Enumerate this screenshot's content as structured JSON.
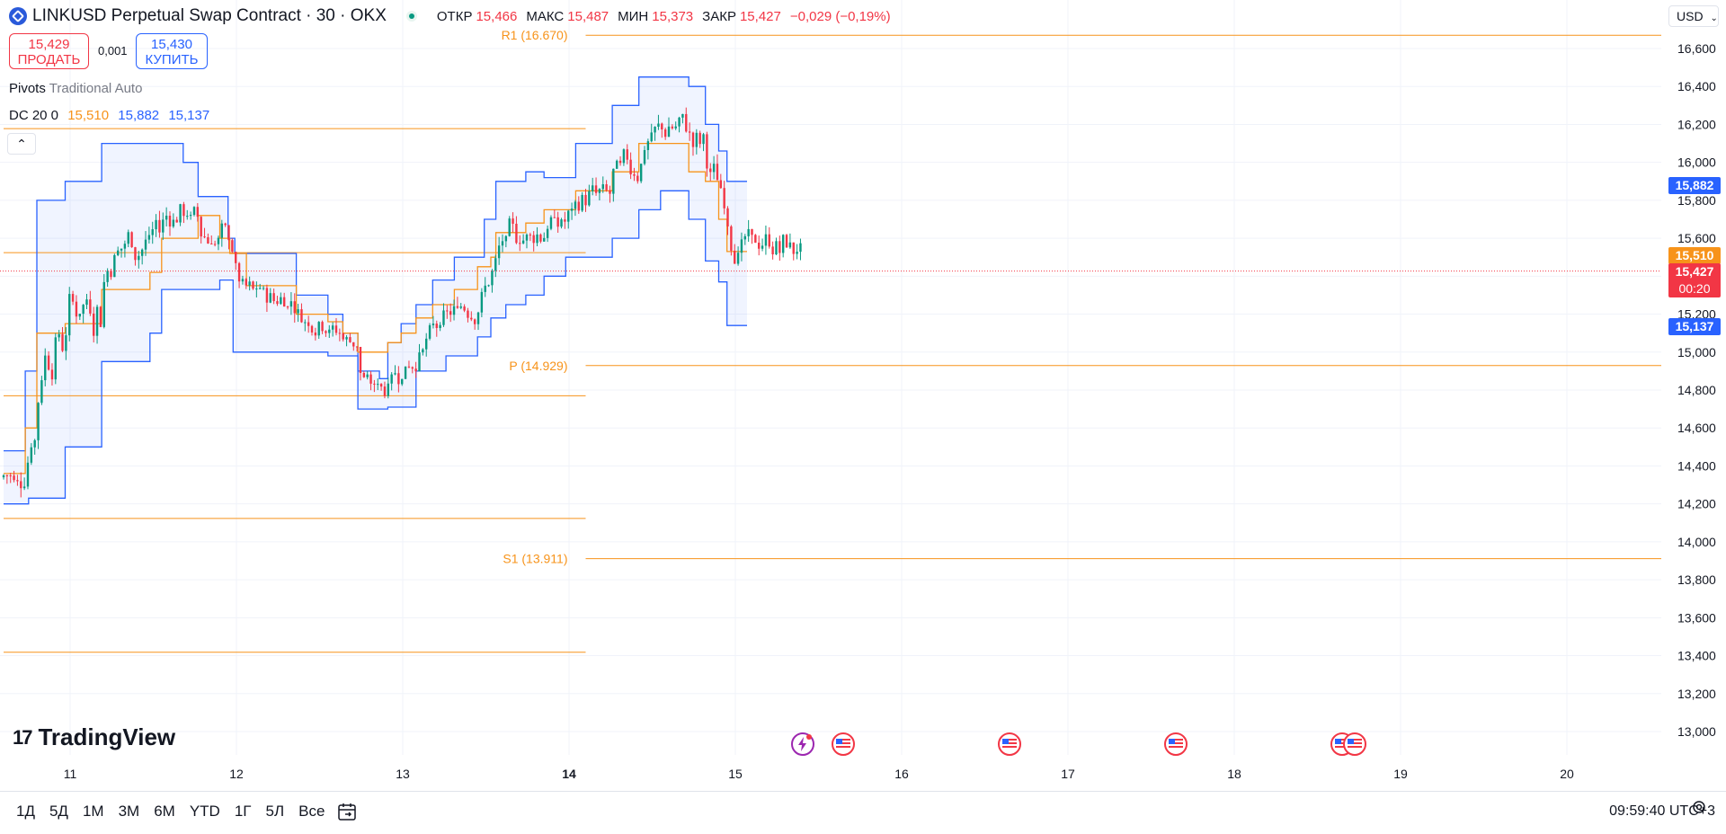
{
  "header": {
    "symbol_title": "LINKUSD Perpetual Swap Contract · 30 · OKX",
    "ohlc": [
      {
        "key": "ОТКР",
        "value": "15,466"
      },
      {
        "key": "МАКС",
        "value": "15,487"
      },
      {
        "key": "МИН",
        "value": "15,373"
      },
      {
        "key": "ЗАКР",
        "value": "15,427"
      }
    ],
    "change": "−0,029 (−0,19%)"
  },
  "trade": {
    "sell_price": "15,429",
    "sell_label": "ПРОДАТЬ",
    "spread": "0,001",
    "buy_price": "15,430",
    "buy_label": "КУПИТЬ"
  },
  "indicators": {
    "pivots_name": "Pivots",
    "pivots_params": "Traditional Auto",
    "dc_name": "DC 20 0",
    "dc_mid": "15,510",
    "dc_upper": "15,882",
    "dc_lower": "15,137"
  },
  "currency": "USD",
  "price_tags": {
    "upper": "15,882",
    "middle": "15,510",
    "last": "15,427",
    "countdown": "00:20",
    "lower": "15,137"
  },
  "colors": {
    "up": "#089981",
    "down": "#f23645",
    "channel": "#2962ff",
    "midline": "#f7931a",
    "pivot": "#f7931a"
  },
  "bottom": {
    "ranges": [
      "1Д",
      "5Д",
      "1М",
      "3М",
      "6М",
      "YTD",
      "1Г",
      "5Л",
      "Все"
    ],
    "clock": "09:59:40 UTC+3"
  },
  "branding": "TradingView",
  "chart_data": {
    "type": "candlestick",
    "y_axis": {
      "ticks": [
        "16,600",
        "16,400",
        "16,200",
        "16,000",
        "15,800",
        "15,600",
        "15,400",
        "15,200",
        "15,000",
        "14,800",
        "14,600",
        "14,400",
        "14,200",
        "14,000",
        "13,800",
        "13,600",
        "13,400",
        "13,200",
        "13,000"
      ],
      "range": [
        12900,
        16720
      ]
    },
    "x_axis": {
      "ticks": [
        "11",
        "12",
        "13",
        "14",
        "15",
        "16",
        "17",
        "18",
        "19",
        "20"
      ],
      "range": [
        10.6,
        20.6
      ]
    },
    "pivot_levels": [
      {
        "label": "R1 (16.670)",
        "value": 16670,
        "from_day": 14.1,
        "to_day": 20.6
      },
      {
        "label": "",
        "value": 16178,
        "from_day": 10.6,
        "to_day": 14.1
      },
      {
        "label": "",
        "value": 15524,
        "from_day": 10.6,
        "to_day": 14.1
      },
      {
        "label": "P (14.929)",
        "value": 14929,
        "from_day": 14.1,
        "to_day": 20.6
      },
      {
        "label": "",
        "value": 14770,
        "from_day": 10.6,
        "to_day": 14.1
      },
      {
        "label": "",
        "value": 14123,
        "from_day": 10.6,
        "to_day": 14.1
      },
      {
        "label": "S1 (13.911)",
        "value": 13911,
        "from_day": 14.1,
        "to_day": 20.6
      },
      {
        "label": "",
        "value": 13418,
        "from_day": 10.6,
        "to_day": 14.1
      }
    ],
    "last_price": 15427,
    "series": [
      {
        "name": "DC upper",
        "points": [
          [
            10.6,
            14.48
          ],
          [
            10.73,
            14.48
          ],
          [
            10.73,
            14.9
          ],
          [
            10.8,
            14.9
          ],
          [
            10.8,
            15.8
          ],
          [
            10.97,
            15.8
          ],
          [
            10.97,
            15.9
          ],
          [
            11.19,
            15.9
          ],
          [
            11.19,
            16.1
          ],
          [
            11.68,
            16.1
          ],
          [
            11.68,
            16.0
          ],
          [
            11.77,
            16.0
          ],
          [
            11.77,
            15.82
          ],
          [
            11.95,
            15.82
          ],
          [
            11.95,
            15.6
          ],
          [
            11.99,
            15.6
          ],
          [
            11.99,
            15.52
          ],
          [
            12.36,
            15.52
          ],
          [
            12.36,
            15.3
          ],
          [
            12.55,
            15.3
          ],
          [
            12.55,
            15.2
          ],
          [
            12.64,
            15.2
          ],
          [
            12.64,
            15.1
          ],
          [
            12.73,
            15.1
          ],
          [
            12.73,
            14.9
          ],
          [
            12.86,
            14.9
          ],
          [
            12.86,
            14.86
          ],
          [
            12.91,
            14.86
          ],
          [
            12.91,
            15.05
          ],
          [
            12.99,
            15.05
          ],
          [
            12.99,
            15.15
          ],
          [
            13.08,
            15.15
          ],
          [
            13.08,
            15.25
          ],
          [
            13.18,
            15.25
          ],
          [
            13.18,
            15.38
          ],
          [
            13.31,
            15.38
          ],
          [
            13.31,
            15.5
          ],
          [
            13.49,
            15.5
          ],
          [
            13.49,
            15.7
          ],
          [
            13.56,
            15.7
          ],
          [
            13.56,
            15.9
          ],
          [
            13.74,
            15.9
          ],
          [
            13.74,
            15.95
          ],
          [
            13.85,
            15.95
          ],
          [
            13.85,
            15.92
          ],
          [
            14.04,
            15.92
          ],
          [
            14.04,
            16.1
          ],
          [
            14.26,
            16.1
          ],
          [
            14.26,
            16.3
          ],
          [
            14.42,
            16.3
          ],
          [
            14.42,
            16.45
          ],
          [
            14.72,
            16.45
          ],
          [
            14.72,
            16.4
          ],
          [
            14.82,
            16.4
          ],
          [
            14.82,
            16.2
          ],
          [
            14.9,
            16.2
          ],
          [
            14.9,
            16.06
          ],
          [
            14.95,
            16.06
          ],
          [
            14.95,
            15.9
          ],
          [
            15.07,
            15.9
          ]
        ]
      },
      {
        "name": "DC middle",
        "points": [
          [
            10.6,
            14.36
          ],
          [
            10.73,
            14.36
          ],
          [
            10.73,
            14.6
          ],
          [
            10.8,
            14.6
          ],
          [
            10.8,
            15.1
          ],
          [
            10.97,
            15.1
          ],
          [
            10.97,
            15.15
          ],
          [
            11.19,
            15.15
          ],
          [
            11.19,
            15.33
          ],
          [
            11.48,
            15.33
          ],
          [
            11.48,
            15.42
          ],
          [
            11.55,
            15.42
          ],
          [
            11.55,
            15.6
          ],
          [
            11.77,
            15.6
          ],
          [
            11.77,
            15.72
          ],
          [
            11.9,
            15.72
          ],
          [
            11.9,
            15.6
          ],
          [
            11.96,
            15.6
          ],
          [
            11.96,
            15.52
          ],
          [
            12.06,
            15.52
          ],
          [
            12.06,
            15.35
          ],
          [
            12.36,
            15.35
          ],
          [
            12.36,
            15.2
          ],
          [
            12.55,
            15.2
          ],
          [
            12.55,
            15.16
          ],
          [
            12.64,
            15.16
          ],
          [
            12.64,
            15.1
          ],
          [
            12.73,
            15.1
          ],
          [
            12.73,
            15.0
          ],
          [
            12.91,
            15.0
          ],
          [
            12.91,
            15.05
          ],
          [
            12.99,
            15.05
          ],
          [
            12.99,
            15.1
          ],
          [
            13.08,
            15.1
          ],
          [
            13.08,
            15.18
          ],
          [
            13.18,
            15.18
          ],
          [
            13.18,
            15.25
          ],
          [
            13.31,
            15.25
          ],
          [
            13.31,
            15.33
          ],
          [
            13.45,
            15.33
          ],
          [
            13.45,
            15.45
          ],
          [
            13.53,
            15.45
          ],
          [
            13.53,
            15.5
          ],
          [
            13.56,
            15.5
          ],
          [
            13.56,
            15.63
          ],
          [
            13.74,
            15.63
          ],
          [
            13.74,
            15.68
          ],
          [
            13.85,
            15.68
          ],
          [
            13.85,
            15.75
          ],
          [
            14.04,
            15.75
          ],
          [
            14.04,
            15.85
          ],
          [
            14.26,
            15.85
          ],
          [
            14.26,
            15.95
          ],
          [
            14.42,
            15.95
          ],
          [
            14.42,
            16.1
          ],
          [
            14.72,
            16.1
          ],
          [
            14.72,
            15.95
          ],
          [
            14.82,
            15.95
          ],
          [
            14.82,
            15.9
          ],
          [
            14.9,
            15.9
          ],
          [
            14.9,
            15.7
          ],
          [
            14.95,
            15.7
          ],
          [
            14.95,
            15.53
          ],
          [
            15.07,
            15.53
          ]
        ]
      },
      {
        "name": "DC lower",
        "points": [
          [
            10.6,
            14.2
          ],
          [
            10.75,
            14.2
          ],
          [
            10.75,
            14.23
          ],
          [
            10.97,
            14.23
          ],
          [
            10.97,
            14.5
          ],
          [
            11.19,
            14.5
          ],
          [
            11.19,
            14.95
          ],
          [
            11.48,
            14.95
          ],
          [
            11.48,
            15.1
          ],
          [
            11.55,
            15.1
          ],
          [
            11.55,
            15.33
          ],
          [
            11.9,
            15.33
          ],
          [
            11.9,
            15.38
          ],
          [
            11.98,
            15.38
          ],
          [
            11.98,
            15.0
          ],
          [
            12.55,
            15.0
          ],
          [
            12.55,
            14.98
          ],
          [
            12.73,
            14.98
          ],
          [
            12.73,
            14.7
          ],
          [
            12.91,
            14.7
          ],
          [
            12.91,
            14.71
          ],
          [
            13.08,
            14.71
          ],
          [
            13.08,
            14.9
          ],
          [
            13.26,
            14.9
          ],
          [
            13.26,
            14.98
          ],
          [
            13.45,
            14.98
          ],
          [
            13.45,
            15.08
          ],
          [
            13.53,
            15.08
          ],
          [
            13.53,
            15.18
          ],
          [
            13.62,
            15.18
          ],
          [
            13.62,
            15.25
          ],
          [
            13.74,
            15.25
          ],
          [
            13.74,
            15.3
          ],
          [
            13.85,
            15.3
          ],
          [
            13.85,
            15.4
          ],
          [
            13.98,
            15.4
          ],
          [
            13.98,
            15.5
          ],
          [
            14.26,
            15.5
          ],
          [
            14.26,
            15.6
          ],
          [
            14.42,
            15.6
          ],
          [
            14.42,
            15.75
          ],
          [
            14.55,
            15.75
          ],
          [
            14.55,
            15.85
          ],
          [
            14.72,
            15.85
          ],
          [
            14.72,
            15.7
          ],
          [
            14.82,
            15.7
          ],
          [
            14.82,
            15.48
          ],
          [
            14.9,
            15.48
          ],
          [
            14.9,
            15.37
          ],
          [
            14.95,
            15.37
          ],
          [
            14.95,
            15.14
          ],
          [
            15.07,
            15.14
          ]
        ]
      }
    ]
  }
}
